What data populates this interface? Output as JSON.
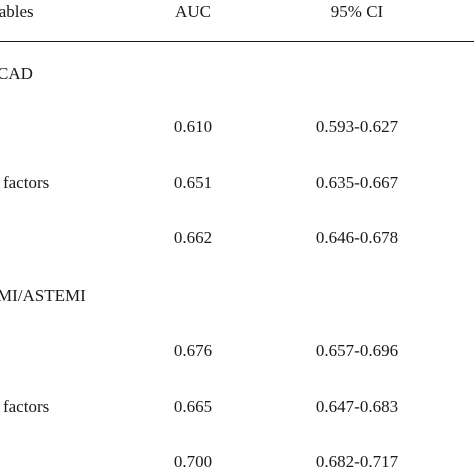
{
  "table": {
    "headers": {
      "variables": "iables",
      "auc": "AUC",
      "ci": "95% CI"
    },
    "sections": [
      {
        "label": "CAD",
        "rows": [
          {
            "variable": "",
            "auc": "0.610",
            "ci": "0.593-0.627"
          },
          {
            "variable": "l factors",
            "auc": "0.651",
            "ci": "0.635-0.667"
          },
          {
            "variable": "",
            "auc": "0.662",
            "ci": "0.646-0.678"
          }
        ]
      },
      {
        "label": "MI/ASTEMI",
        "rows": [
          {
            "variable": "",
            "auc": "0.676",
            "ci": "0.657-0.696"
          },
          {
            "variable": "l factors",
            "auc": "0.665",
            "ci": "0.647-0.683"
          },
          {
            "variable": "",
            "auc": "0.700",
            "ci": "0.682-0.717"
          }
        ]
      }
    ]
  }
}
